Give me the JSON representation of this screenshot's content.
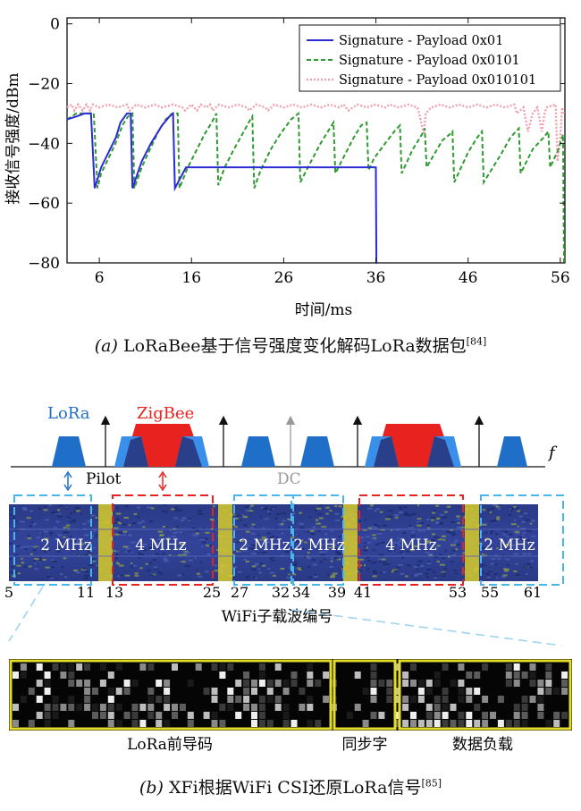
{
  "figure_a": {
    "caption": "(a) LoRaBee基于信号强度变化解码LoRa数据包[84]",
    "caption_text": "LoRaBee基于信号强度变化解码LoRa数据包",
    "caption_label": "(a)",
    "caption_ref": "[84]"
  },
  "chart_data": {
    "type": "line",
    "title": "",
    "xlabel": "时间/ms",
    "ylabel": "接收信号强度/dBm",
    "xlim": [
      2.5,
      56.5
    ],
    "ylim": [
      -80,
      2
    ],
    "xticks": [
      6,
      16,
      26,
      36,
      46,
      56
    ],
    "yticks": [
      0,
      -20,
      -40,
      -60,
      -80
    ],
    "grid": false,
    "legend_position": "top-right",
    "colors": {
      "blue": "#2b2bd6",
      "green": "#2f9a2f",
      "pink": "#f0a0ad"
    },
    "series": [
      {
        "name": "Signature - Payload 0x01",
        "style": "solid",
        "color": "#2b2bd6",
        "x": [
          2.5,
          3.5,
          4.4,
          5.1,
          5.5,
          5.7,
          6.2,
          7.0,
          7.8,
          8.3,
          9.0,
          9.4,
          9.6,
          10.6,
          11.6,
          12.8,
          13.6,
          14.0,
          14.2,
          15.4,
          36.0,
          36.05,
          36.15
        ],
        "y": [
          -32,
          -31,
          -30,
          -30,
          -55,
          -53,
          -48,
          -43,
          -38,
          -33,
          -30,
          -30,
          -55,
          -46,
          -40,
          -34,
          -31,
          -30,
          -55,
          -48,
          -48,
          -80,
          -80
        ]
      },
      {
        "name": "Signature - Payload 0x0101",
        "style": "dashed",
        "color": "#2f9a2f",
        "x": [
          2.5,
          3.5,
          4.5,
          5.4,
          5.8,
          6.2,
          7.0,
          7.9,
          8.5,
          9.1,
          9.6,
          9.8,
          10.6,
          11.5,
          12.4,
          13.2,
          13.9,
          14.5,
          14.7,
          15.6,
          16.6,
          17.4,
          18.2,
          18.7,
          18.9,
          19.6,
          20.6,
          21.5,
          22.2,
          22.6,
          22.8,
          23.5,
          24.6,
          25.6,
          26.8,
          27.6,
          27.8,
          28.8,
          30.0,
          31.0,
          31.4,
          31.6,
          32.6,
          33.6,
          34.4,
          35.0,
          35.2,
          35.8,
          37.0,
          38.0,
          38.6,
          38.8,
          40.0,
          41.0,
          41.3,
          41.5,
          43.2,
          44.0,
          44.3,
          44.5,
          46.0,
          47.0,
          47.5,
          47.7,
          49.5,
          50.6,
          51.5,
          51.7,
          53.0,
          54.2,
          54.7,
          54.9,
          55.8,
          56.3,
          56.4
        ],
        "y": [
          -32,
          -30,
          -30,
          -30,
          -55,
          -50,
          -45,
          -39,
          -34,
          -31,
          -30,
          -55,
          -48,
          -42,
          -36,
          -32,
          -30,
          -30,
          -55,
          -48,
          -42,
          -37,
          -33,
          -30,
          -54,
          -48,
          -42,
          -37,
          -33,
          -31,
          -55,
          -49,
          -42,
          -37,
          -32,
          -30,
          -53,
          -47,
          -40,
          -35,
          -33,
          -50,
          -44,
          -38,
          -34,
          -33,
          -49,
          -45,
          -40,
          -36,
          -34,
          -50,
          -42,
          -37,
          -35,
          -48,
          -39,
          -37,
          -36,
          -53,
          -43,
          -38,
          -36,
          -53,
          -44,
          -38,
          -35,
          -50,
          -42,
          -38,
          -36,
          -48,
          -42,
          -37,
          -80
        ]
      },
      {
        "name": "Signature - Payload 0x010101",
        "style": "dotted",
        "color": "#f0a0ad",
        "x": [
          2.5,
          3.0,
          3.3,
          3.7,
          4.2,
          4.6,
          5.0,
          5.3,
          6.0,
          7.0,
          8.0,
          9.0,
          9.3,
          10.0,
          11.0,
          12.0,
          12.8,
          14.0,
          15.0,
          15.3,
          16.0,
          16.6,
          17.0,
          17.6,
          18.0,
          18.3,
          19.0,
          20.0,
          21.0,
          22.0,
          22.3,
          23.0,
          24.0,
          24.3,
          25.0,
          26.0,
          27.0,
          28.0,
          29.0,
          30.0,
          31.0,
          32.0,
          32.5,
          33.0,
          34.0,
          35.0,
          36.0,
          37.0,
          37.5,
          38.5,
          39.5,
          40.5,
          40.7,
          41.2,
          41.4,
          42.0,
          43.0,
          44.0,
          45.0,
          46.0,
          47.0,
          48.0,
          49.0,
          50.0,
          51.0,
          51.3,
          52.0,
          52.5,
          53.0,
          53.5,
          54.0,
          54.3,
          54.5,
          55.5,
          55.7,
          56.0,
          56.2,
          56.4
        ],
        "y": [
          -28,
          -27,
          -29,
          -27,
          -29,
          -27,
          -29,
          -27,
          -28,
          -27,
          -28,
          -27,
          -29,
          -27,
          -28,
          -27,
          -28,
          -27,
          -28,
          -29,
          -27,
          -29,
          -27,
          -28,
          -27,
          -29,
          -27,
          -28,
          -27,
          -28,
          -29,
          -27,
          -28,
          -29,
          -27,
          -28,
          -27,
          -28,
          -27,
          -28,
          -27,
          -28,
          -27,
          -29,
          -27,
          -28,
          -27,
          -28,
          -27,
          -28,
          -27,
          -28,
          -30,
          -37,
          -30,
          -28,
          -27,
          -28,
          -27,
          -28,
          -27,
          -28,
          -27,
          -28,
          -27,
          -30,
          -28,
          -36,
          -30,
          -28,
          -36,
          -30,
          -28,
          -27,
          -46,
          -38,
          -28,
          -30
        ]
      }
    ]
  },
  "figure_b": {
    "caption": "(b) XFi根据WiFi CSI还原LoRa信号[85]",
    "caption_text": "XFi根据WiFi CSI还原LoRa信号",
    "caption_label": "(b)",
    "caption_ref": "[85]",
    "spectrum": {
      "lora_label": "LoRa",
      "zigbee_label": "ZigBee",
      "freq_label": "f",
      "pilot_label": "Pilot",
      "dc_label": "DC",
      "colors": {
        "lora": "#1f6fc8",
        "lora_light": "#3a8fe8",
        "zigbee": "#e8231f",
        "overlap": "#2a3f8a"
      }
    },
    "csi_map": {
      "band_labels": [
        "2 MHz",
        "4 MHz",
        "2 MHz",
        "2 MHz",
        "4 MHz",
        "2 MHz"
      ],
      "subcarrier_ticks": [
        "5",
        "11",
        "13",
        "25",
        "27",
        "32",
        "34",
        "39",
        "41",
        "53",
        "55",
        "61"
      ],
      "xlabel": "WiFi子载波编号"
    },
    "zoom": {
      "segments": [
        "LoRa前导码",
        "同步字",
        "数据负载"
      ]
    }
  }
}
